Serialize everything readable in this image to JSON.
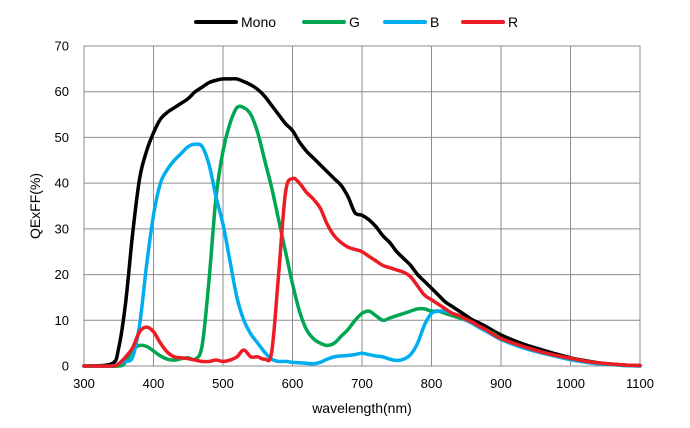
{
  "chart_data": {
    "type": "line",
    "title": "",
    "xlabel": "wavelength(nm)",
    "ylabel": "QExFF(%)",
    "xlim": [
      300,
      1100
    ],
    "ylim": [
      0,
      70
    ],
    "xticks": [
      300,
      400,
      500,
      600,
      700,
      800,
      900,
      1000,
      1100
    ],
    "yticks": [
      0,
      10,
      20,
      30,
      40,
      50,
      60,
      70
    ],
    "grid": true,
    "legend_position": "top",
    "series": [
      {
        "name": "Mono",
        "color": "#000000",
        "x": [
          300,
          340,
          350,
          360,
          370,
          380,
          390,
          400,
          410,
          420,
          430,
          440,
          450,
          460,
          470,
          480,
          490,
          500,
          510,
          520,
          530,
          540,
          550,
          560,
          570,
          580,
          590,
          600,
          610,
          620,
          630,
          640,
          650,
          660,
          670,
          680,
          690,
          700,
          710,
          720,
          730,
          740,
          750,
          760,
          770,
          780,
          790,
          800,
          810,
          820,
          830,
          840,
          850,
          860,
          870,
          880,
          890,
          900,
          920,
          940,
          960,
          980,
          1000,
          1020,
          1040,
          1060,
          1080,
          1100
        ],
        "y": [
          0,
          0.5,
          4,
          14,
          29,
          41,
          47,
          51,
          54,
          55.5,
          56.5,
          57.5,
          58.5,
          60,
          61,
          62,
          62.5,
          62.8,
          62.8,
          62.8,
          62.2,
          61.5,
          60.5,
          59,
          57,
          55,
          53,
          51.5,
          49,
          47,
          45.5,
          44,
          42.5,
          41,
          39.5,
          37,
          33.5,
          33,
          32,
          30.5,
          28.5,
          27,
          25,
          23.5,
          22,
          20,
          18.5,
          17,
          15.5,
          14,
          13,
          12,
          11,
          10,
          9.3,
          8.5,
          7.6,
          6.8,
          5.5,
          4.4,
          3.5,
          2.6,
          1.8,
          1.2,
          0.7,
          0.4,
          0.2,
          0.1
        ]
      },
      {
        "name": "G",
        "color": "#00a651",
        "x": [
          300,
          350,
          360,
          370,
          380,
          390,
          400,
          410,
          420,
          430,
          440,
          450,
          460,
          470,
          480,
          490,
          500,
          510,
          520,
          530,
          540,
          550,
          560,
          570,
          580,
          590,
          600,
          610,
          620,
          630,
          640,
          650,
          660,
          670,
          680,
          690,
          700,
          710,
          720,
          730,
          740,
          750,
          760,
          770,
          780,
          790,
          800,
          810,
          820,
          830,
          840,
          850,
          860,
          870,
          880,
          890,
          900,
          920,
          940,
          960,
          980,
          1000,
          1020,
          1040,
          1060,
          1080,
          1100
        ],
        "y": [
          0,
          0,
          1,
          3.5,
          4.5,
          4.3,
          3.3,
          2.2,
          1.5,
          1.3,
          1.6,
          1.8,
          1.5,
          4.5,
          19,
          37,
          47,
          53,
          56.5,
          56.5,
          55,
          51,
          45,
          39,
          32,
          25,
          18,
          12,
          8,
          6,
          5,
          4.5,
          5,
          6.5,
          8,
          10,
          11.5,
          12,
          11,
          10,
          10.5,
          11,
          11.5,
          12,
          12.5,
          12.5,
          12,
          12,
          11.5,
          11,
          10.5,
          10,
          9.5,
          8.5,
          7.8,
          7,
          6,
          4.8,
          3.8,
          2.9,
          2.1,
          1.4,
          0.9,
          0.5,
          0.3,
          0.1,
          0
        ]
      },
      {
        "name": "B",
        "color": "#00aeef",
        "x": [
          300,
          340,
          350,
          360,
          370,
          380,
          390,
          400,
          410,
          420,
          430,
          440,
          450,
          460,
          470,
          480,
          490,
          500,
          510,
          520,
          530,
          540,
          550,
          560,
          570,
          580,
          590,
          600,
          610,
          620,
          630,
          640,
          650,
          660,
          670,
          680,
          690,
          700,
          710,
          720,
          730,
          740,
          750,
          760,
          770,
          780,
          790,
          800,
          810,
          820,
          830,
          840,
          850,
          860,
          870,
          880,
          890,
          900,
          920,
          940,
          960,
          980,
          1000,
          1020,
          1040,
          1060,
          1080,
          1100
        ],
        "y": [
          0,
          0,
          0.5,
          1,
          2,
          9,
          22,
          33,
          40,
          43,
          45,
          46.5,
          48,
          48.5,
          48,
          44,
          37,
          31,
          23,
          15,
          10,
          7,
          5,
          3,
          1.5,
          1,
          1,
          0.8,
          0.7,
          0.6,
          0.5,
          0.8,
          1.5,
          2,
          2.2,
          2.3,
          2.5,
          2.8,
          2.5,
          2.2,
          2,
          1.5,
          1.2,
          1.5,
          2.5,
          5,
          9,
          11.5,
          12,
          12,
          11.5,
          11,
          10,
          9.2,
          8.3,
          7.5,
          6.6,
          5.8,
          4.6,
          3.6,
          2.8,
          2.1,
          1.4,
          0.9,
          0.5,
          0.3,
          0.1,
          0
        ]
      },
      {
        "name": "R",
        "color": "#ed1c24",
        "x": [
          300,
          340,
          350,
          360,
          370,
          380,
          390,
          400,
          410,
          420,
          430,
          440,
          450,
          460,
          470,
          480,
          490,
          500,
          510,
          520,
          530,
          540,
          550,
          560,
          570,
          580,
          590,
          600,
          610,
          620,
          630,
          640,
          650,
          660,
          670,
          680,
          690,
          700,
          710,
          720,
          730,
          740,
          750,
          760,
          770,
          780,
          790,
          800,
          810,
          820,
          830,
          840,
          850,
          860,
          870,
          880,
          890,
          900,
          920,
          940,
          960,
          980,
          1000,
          1020,
          1040,
          1060,
          1080,
          1100
        ],
        "y": [
          0,
          0,
          0.5,
          2,
          4,
          7.5,
          8.5,
          7.5,
          5,
          3,
          2,
          1.8,
          1.6,
          1.3,
          1,
          1,
          1.3,
          1,
          1.3,
          2,
          3.5,
          2,
          2,
          1.5,
          3,
          20,
          38,
          41,
          40,
          38,
          36.5,
          34.5,
          31,
          28.5,
          27,
          26,
          25.5,
          25,
          24,
          23,
          22,
          21.5,
          21,
          20.5,
          19.5,
          17.5,
          15.5,
          14.5,
          13.5,
          12.5,
          11.5,
          11,
          10.2,
          9.5,
          8.6,
          7.8,
          6.8,
          6,
          4.9,
          3.9,
          3,
          2.3,
          1.7,
          1.1,
          0.7,
          0.4,
          0.2,
          0.1
        ]
      }
    ]
  }
}
